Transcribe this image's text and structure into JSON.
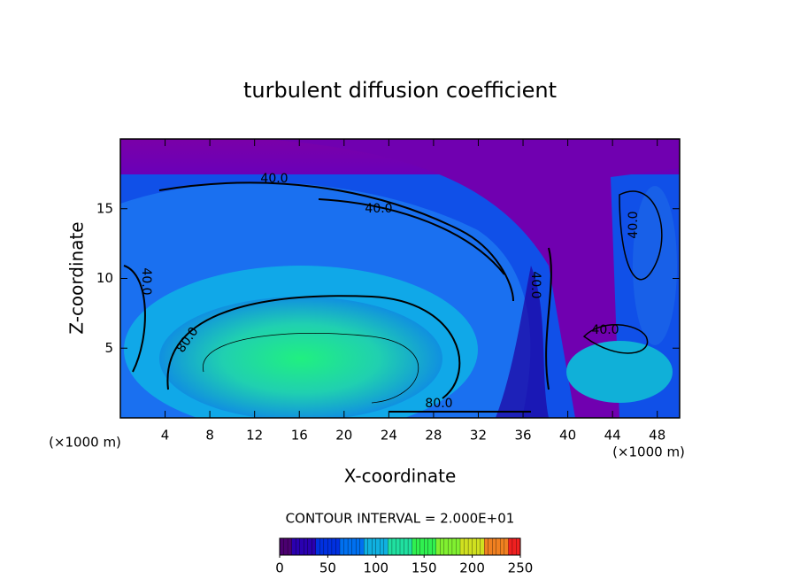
{
  "chart_data": {
    "type": "contour",
    "title": "turbulent diffusion coefficient",
    "x_label": "X-coordinate",
    "y_label": "Z-coordinate",
    "x_units": [
      "(×1000 m)",
      "(×1000 m)"
    ],
    "xlim": [
      0,
      50
    ],
    "xticks": [
      4,
      8,
      12,
      16,
      20,
      24,
      28,
      32,
      36,
      40,
      44,
      48
    ],
    "ylim": [
      0,
      20
    ],
    "yticks": [
      5,
      10,
      15
    ],
    "contour_interval_label": "CONTOUR INTERVAL = 2.000E+01",
    "contour_labels": [
      "40.0",
      "40.0",
      "40.0",
      "40.0",
      "40.0",
      "40.0",
      "80.0",
      "80.0"
    ],
    "colorbar": {
      "lim": [
        0,
        250
      ],
      "ticks": [
        0,
        50,
        100,
        150,
        200,
        250
      ],
      "colors": [
        "#4b0070",
        "#2a00b0",
        "#0030e0",
        "#0070f0",
        "#10b0e0",
        "#20e0a0",
        "#30f050",
        "#80f030",
        "#d0e020",
        "#f08020",
        "#f02020"
      ]
    }
  }
}
